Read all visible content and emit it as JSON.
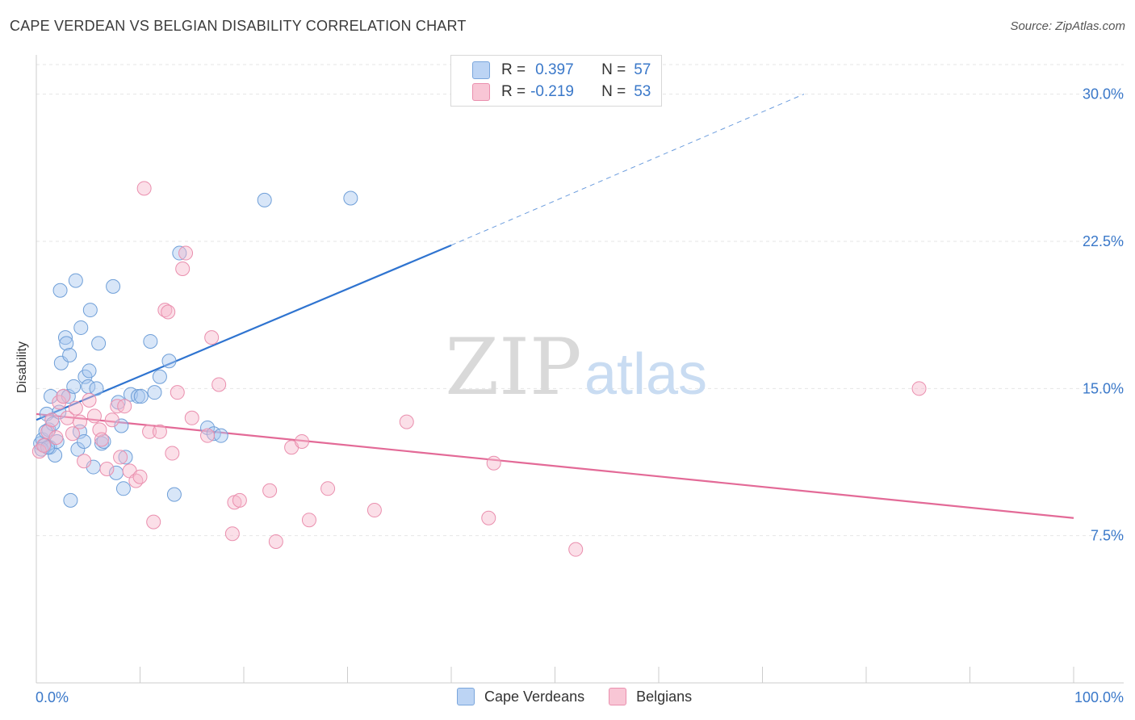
{
  "header": {
    "title": "CAPE VERDEAN VS BELGIAN DISABILITY CORRELATION CHART",
    "source": "Source: ZipAtlas.com"
  },
  "watermark": {
    "zip": "ZIP",
    "atlas": "atlas"
  },
  "legend": {
    "rows": [
      {
        "r_label": "R =",
        "r_value": "0.397",
        "n_label": "N =",
        "n_value": "57"
      },
      {
        "r_label": "R =",
        "r_value": "-0.219",
        "n_label": "N =",
        "n_value": "53"
      }
    ]
  },
  "colors": {
    "blue_fill": "#a8c8f0",
    "blue_stroke": "#6f9fd8",
    "blue_line": "#2f74d0",
    "pink_fill": "#f6b8cb",
    "pink_stroke": "#ea8fae",
    "pink_line": "#e36a97",
    "grid": "#e6e6e6",
    "tick_label": "#3a78c9"
  },
  "chart_data": {
    "type": "scatter",
    "title": "CAPE VERDEAN VS BELGIAN DISABILITY CORRELATION CHART",
    "xlabel": "",
    "ylabel": "Disability",
    "xlim": [
      0,
      100
    ],
    "ylim": [
      0,
      32
    ],
    "x_tick_labels": [
      "0.0%",
      "100.0%"
    ],
    "y_ticks": [
      7.5,
      15.0,
      22.5,
      30.0
    ],
    "y_tick_labels": [
      "7.5%",
      "15.0%",
      "22.5%",
      "30.0%"
    ],
    "grid": true,
    "legend_position": "bottom",
    "series": [
      {
        "name": "Cape Verdeans",
        "r": 0.397,
        "n": 57,
        "trend": {
          "x0": 0,
          "y0": 13.4,
          "x1": 40,
          "y1": 22.3,
          "dash_to_x": 74,
          "dash_to_y": 30.0
        },
        "points": [
          [
            0.4,
            12.2
          ],
          [
            0.6,
            12.4
          ],
          [
            0.8,
            12.1
          ],
          [
            1.0,
            13.7
          ],
          [
            1.2,
            12.9
          ],
          [
            1.3,
            12.0
          ],
          [
            1.4,
            14.6
          ],
          [
            1.6,
            13.2
          ],
          [
            1.8,
            11.6
          ],
          [
            2.0,
            12.3
          ],
          [
            2.2,
            13.8
          ],
          [
            2.3,
            20.0
          ],
          [
            2.4,
            16.3
          ],
          [
            2.6,
            14.6
          ],
          [
            2.8,
            17.6
          ],
          [
            2.9,
            17.3
          ],
          [
            3.1,
            14.6
          ],
          [
            3.2,
            16.7
          ],
          [
            3.3,
            9.3
          ],
          [
            3.6,
            15.1
          ],
          [
            3.8,
            20.5
          ],
          [
            4.0,
            11.9
          ],
          [
            4.2,
            12.8
          ],
          [
            4.3,
            18.1
          ],
          [
            4.6,
            12.3
          ],
          [
            4.7,
            15.6
          ],
          [
            5.0,
            15.1
          ],
          [
            5.1,
            15.9
          ],
          [
            5.2,
            19.0
          ],
          [
            5.5,
            11.0
          ],
          [
            5.8,
            15.0
          ],
          [
            6.0,
            17.3
          ],
          [
            6.3,
            12.2
          ],
          [
            6.5,
            12.3
          ],
          [
            7.4,
            20.2
          ],
          [
            7.7,
            10.7
          ],
          [
            7.9,
            14.3
          ],
          [
            8.2,
            13.1
          ],
          [
            8.4,
            9.9
          ],
          [
            8.6,
            11.5
          ],
          [
            9.1,
            14.7
          ],
          [
            9.8,
            14.6
          ],
          [
            10.1,
            14.6
          ],
          [
            11.0,
            17.4
          ],
          [
            11.4,
            14.8
          ],
          [
            11.9,
            15.6
          ],
          [
            12.8,
            16.4
          ],
          [
            13.3,
            9.6
          ],
          [
            13.8,
            21.9
          ],
          [
            16.5,
            13.0
          ],
          [
            17.1,
            12.7
          ],
          [
            17.8,
            12.6
          ],
          [
            22.0,
            24.6
          ],
          [
            30.3,
            24.7
          ],
          [
            0.5,
            11.9
          ],
          [
            0.9,
            12.8
          ],
          [
            1.1,
            12.0
          ]
        ]
      },
      {
        "name": "Belgians",
        "r": -0.219,
        "n": 53,
        "trend": {
          "x0": 0,
          "y0": 13.7,
          "x1": 100,
          "y1": 8.4
        },
        "points": [
          [
            0.3,
            11.8
          ],
          [
            0.7,
            12.1
          ],
          [
            1.1,
            12.8
          ],
          [
            1.5,
            13.4
          ],
          [
            1.9,
            12.5
          ],
          [
            2.2,
            14.3
          ],
          [
            2.6,
            14.6
          ],
          [
            3.0,
            13.5
          ],
          [
            3.5,
            12.7
          ],
          [
            3.8,
            14.0
          ],
          [
            4.2,
            13.3
          ],
          [
            4.6,
            11.3
          ],
          [
            5.1,
            14.4
          ],
          [
            5.6,
            13.6
          ],
          [
            6.1,
            12.9
          ],
          [
            6.3,
            12.4
          ],
          [
            6.8,
            10.9
          ],
          [
            7.3,
            13.4
          ],
          [
            7.8,
            14.1
          ],
          [
            8.1,
            11.5
          ],
          [
            8.5,
            14.1
          ],
          [
            9.0,
            10.8
          ],
          [
            9.6,
            10.3
          ],
          [
            10.0,
            10.5
          ],
          [
            10.4,
            25.2
          ],
          [
            10.9,
            12.8
          ],
          [
            11.3,
            8.2
          ],
          [
            11.9,
            12.8
          ],
          [
            12.4,
            19.0
          ],
          [
            12.7,
            18.9
          ],
          [
            13.1,
            11.7
          ],
          [
            13.6,
            14.8
          ],
          [
            14.1,
            21.1
          ],
          [
            14.4,
            21.9
          ],
          [
            15.0,
            13.5
          ],
          [
            16.5,
            12.6
          ],
          [
            16.9,
            17.6
          ],
          [
            17.6,
            15.2
          ],
          [
            18.9,
            7.6
          ],
          [
            19.1,
            9.2
          ],
          [
            19.6,
            9.3
          ],
          [
            22.5,
            9.8
          ],
          [
            23.1,
            7.2
          ],
          [
            24.6,
            12.0
          ],
          [
            25.6,
            12.3
          ],
          [
            26.3,
            8.3
          ],
          [
            28.1,
            9.9
          ],
          [
            32.6,
            8.8
          ],
          [
            35.7,
            13.3
          ],
          [
            43.6,
            8.4
          ],
          [
            44.1,
            11.2
          ],
          [
            52.0,
            6.8
          ],
          [
            85.1,
            15.0
          ]
        ]
      }
    ]
  }
}
